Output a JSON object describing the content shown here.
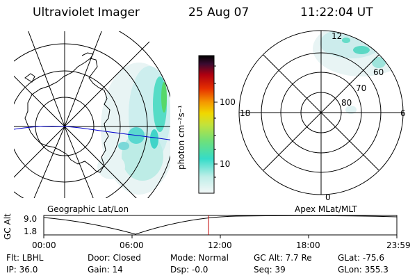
{
  "header": {
    "title": "Ultraviolet Imager",
    "date": "25 Aug 07",
    "time": "11:22:04 UT"
  },
  "left_map": {
    "label": "Geographic Lat/Lon"
  },
  "right_map": {
    "label": "Apex MLat/MLT",
    "mlt_labels": {
      "top": "12",
      "left": "18",
      "right": "6",
      "bottom": "0"
    },
    "lat_labels": [
      "60",
      "70",
      "80"
    ]
  },
  "colorbar": {
    "unit_label": "photon cm⁻²s⁻¹",
    "ticks": [
      "100",
      "10"
    ],
    "scale": "log",
    "colors": [
      "#f0f6f6",
      "#3de0c8",
      "#9fe050",
      "#e6e000",
      "#f39b00",
      "#e52b00",
      "#b00000",
      "#40102a",
      "#000000"
    ]
  },
  "timeline": {
    "ylabel": "GC Alt",
    "ytick_top": "9.0",
    "ytick_bottom": "1.8",
    "xticks": [
      "00:00",
      "06:00",
      "12:00",
      "18:00",
      "23:59"
    ],
    "marker_time_hours": 11.37,
    "marker_color": "#c00000"
  },
  "info": {
    "filter": "Flt: LBHL",
    "ip": "IP: 36.0",
    "door": "Door: Closed",
    "gain": "Gain: 14",
    "mode": "Mode: Normal",
    "dsp": "Dsp:   -0.0",
    "gc_alt": "GC Alt: 7.7 Re",
    "seq": "Seq: 39",
    "glat": "GLat: -75.6",
    "glon": "GLon: 355.3"
  }
}
